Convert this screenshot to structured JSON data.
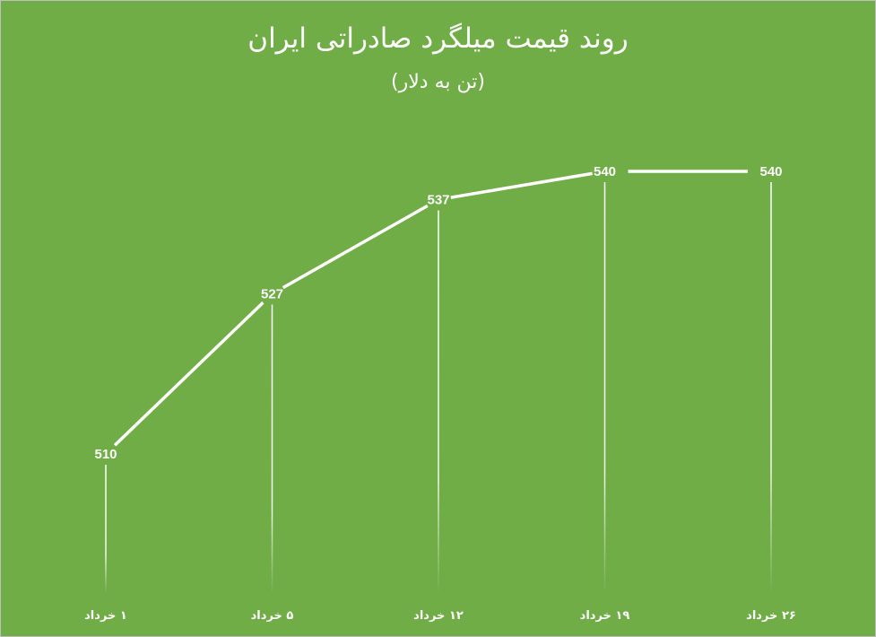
{
  "chart_data": {
    "type": "line",
    "title": "روند قیمت میلگرد صادراتی ایران",
    "subtitle": "(تن به دلار)",
    "categories": [
      "۱ خرداد",
      "۵ خرداد",
      "۱۲ خرداد",
      "۱۹ خرداد",
      "۲۶ خرداد"
    ],
    "series": [
      {
        "values": [
          510,
          527,
          537,
          540,
          540
        ]
      }
    ],
    "data_labels": [
      "510",
      "527",
      "537",
      "540",
      "540"
    ],
    "xlabel": "",
    "ylabel": "",
    "ylim": [
      480,
      550
    ],
    "grid": false,
    "legend": "none",
    "drop_lines": true
  },
  "colors": {
    "background": "#70ad47",
    "line": "#ffffff",
    "text": "#ffffff"
  }
}
